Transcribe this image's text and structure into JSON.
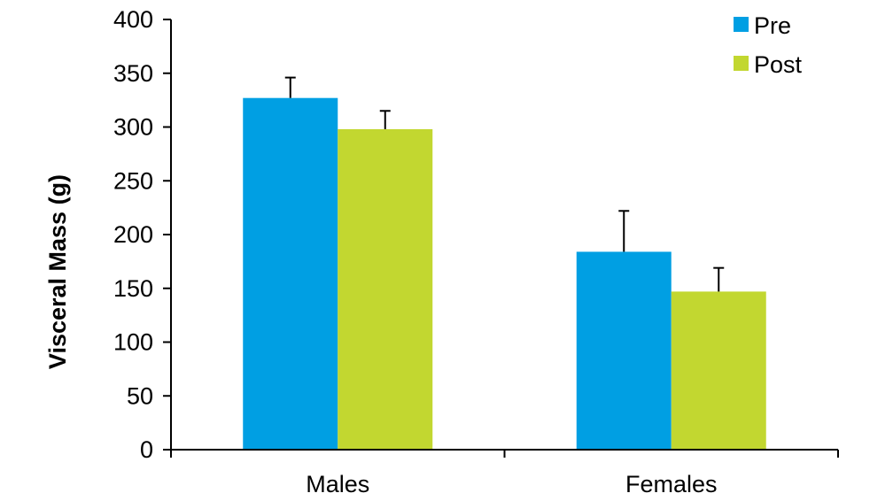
{
  "chart_data": {
    "type": "bar",
    "title": "",
    "xlabel": "",
    "ylabel": "Visceral Mass (g)",
    "ylim": [
      0,
      400
    ],
    "yticks": [
      0,
      50,
      100,
      150,
      200,
      250,
      300,
      350,
      400
    ],
    "categories": [
      "Males",
      "Females"
    ],
    "series": [
      {
        "name": "Pre",
        "color": "#009fe3",
        "values": [
          327,
          184
        ],
        "errors": [
          19,
          38
        ]
      },
      {
        "name": "Post",
        "color": "#c2d730",
        "values": [
          298,
          147
        ],
        "errors": [
          17,
          22
        ]
      }
    ],
    "legend": "top-right",
    "grid": false
  }
}
